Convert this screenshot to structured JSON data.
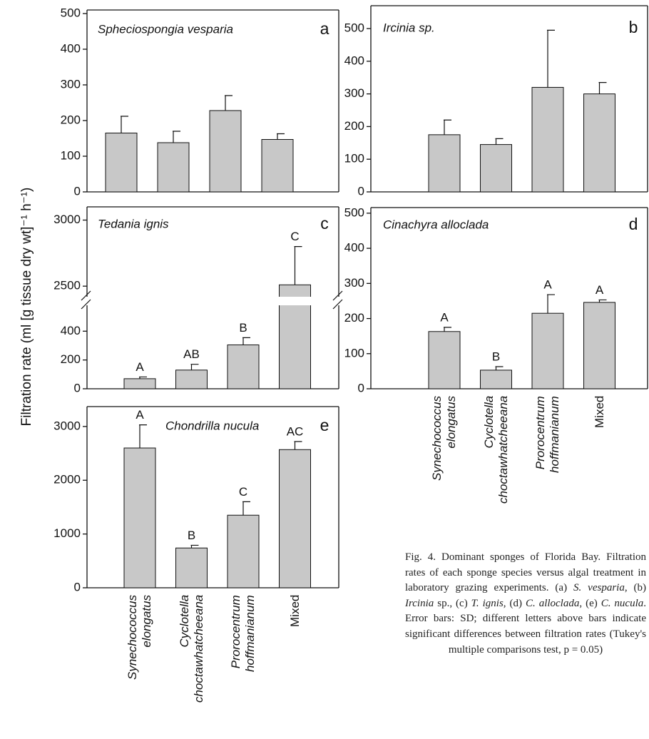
{
  "chart_data": [
    {
      "type": "bar",
      "title": "Spheciospongia vesparia",
      "label": "a",
      "values": [
        165,
        138,
        228,
        147
      ],
      "errors": [
        47,
        32,
        42,
        16
      ],
      "color": "#c8c8c8",
      "ylim": [
        0,
        510
      ],
      "yticks": [
        0,
        100,
        200,
        300,
        400,
        500
      ]
    },
    {
      "type": "bar",
      "title": "Ircinia sp.",
      "label": "b",
      "values": [
        175,
        145,
        320,
        300
      ],
      "errors": [
        45,
        18,
        175,
        35
      ],
      "color": "#c8c8c8",
      "ylim": [
        0,
        570
      ],
      "yticks": [
        0,
        100,
        200,
        300,
        400,
        500
      ]
    },
    {
      "type": "bar",
      "title": "Tedania ignis",
      "label": "c",
      "values": [
        70,
        130,
        305,
        2510
      ],
      "errors": [
        12,
        40,
        50,
        290
      ],
      "annotations": [
        "A",
        "AB",
        "B",
        "C"
      ],
      "color": "#c8c8c8",
      "ylim": [
        0,
        3100
      ],
      "axis_break": [
        580,
        2420
      ],
      "yticks": [
        0,
        200,
        400,
        2500,
        3000
      ]
    },
    {
      "type": "bar",
      "title": "Cinachyra alloclada",
      "label": "d",
      "categories": [
        "Synechococcus elongatus",
        "Cyclotella choctawhatcheeana",
        "Prorocentrum hoffmanianum",
        "Mixed"
      ],
      "category_italic": [
        true,
        true,
        true,
        false
      ],
      "values": [
        163,
        53,
        215,
        246
      ],
      "errors": [
        12,
        10,
        53,
        7
      ],
      "annotations": [
        "A",
        "B",
        "A",
        "A"
      ],
      "color": "#c8c8c8",
      "ylim": [
        0,
        516
      ],
      "yticks": [
        0,
        100,
        200,
        300,
        400,
        500
      ]
    },
    {
      "type": "bar",
      "title": "Chondrilla nucula",
      "label": "e",
      "categories": [
        "Synechococcus elongatus",
        "Cyclotella choctawhatcheeana",
        "Prorocentrum hoffmanianum",
        "Mixed"
      ],
      "category_italic": [
        true,
        true,
        true,
        false
      ],
      "values": [
        2600,
        740,
        1350,
        2570
      ],
      "errors": [
        430,
        50,
        250,
        150
      ],
      "annotations": [
        "A",
        "B",
        "C",
        "AC"
      ],
      "color": "#c8c8c8",
      "ylim": [
        0,
        3370
      ],
      "yticks": [
        0,
        1000,
        2000,
        3000
      ]
    }
  ],
  "y_label": "Filtration rate (ml [g tissue dry wt]⁻¹ h⁻¹)",
  "caption": [
    {
      "text": "Fig. 4. Dominant sponges of Florida Bay. Filtration rates of each sponge species versus algal treatment in laboratory grazing experiments. (a) ",
      "italic": false
    },
    {
      "text": "S. vesparia",
      "italic": true
    },
    {
      "text": ", (b) ",
      "italic": false
    },
    {
      "text": "Ircinia",
      "italic": true
    },
    {
      "text": " sp., (c) ",
      "italic": false
    },
    {
      "text": "T. ignis",
      "italic": true
    },
    {
      "text": ", (d) ",
      "italic": false
    },
    {
      "text": "C. alloclada",
      "italic": true
    },
    {
      "text": ", (e) ",
      "italic": false
    },
    {
      "text": "C. nucula",
      "italic": true
    },
    {
      "text": ". Error bars: SD; different letters above bars indicate significant differences between filtration rates (Tukey's multiple comparisons test, p = 0.05)",
      "italic": false
    }
  ]
}
